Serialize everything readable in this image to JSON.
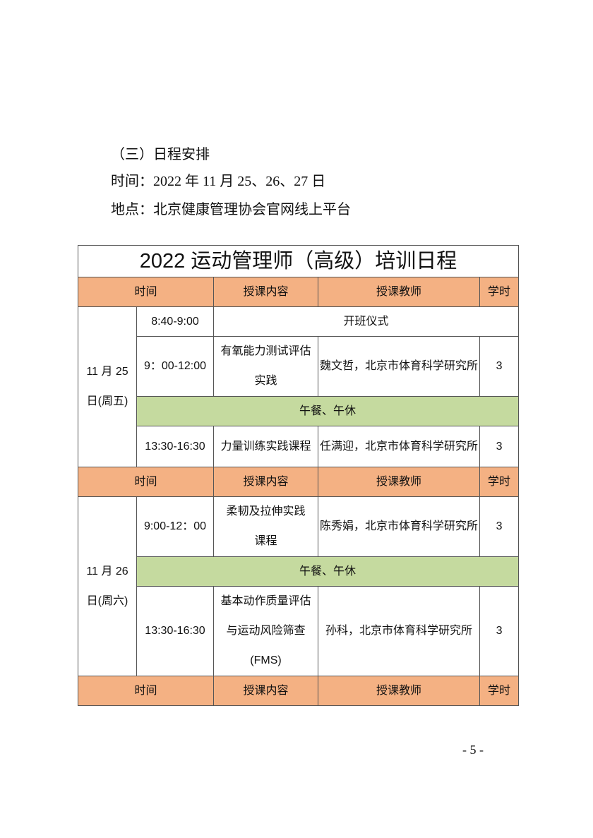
{
  "section_heading": "（三）日程安排",
  "time_line": "时间：2022 年 11 月 25、26、27 日",
  "place_line": "地点：北京健康管理协会官网线上平台",
  "table": {
    "title": "2022 运动管理师（高级）培训日程",
    "headers": [
      "时间",
      "授课内容",
      "授课教师",
      "学时"
    ],
    "colors": {
      "header": "#f4b183",
      "break": "#c5da9f"
    },
    "days": [
      {
        "date": "11 月 25 日(周五)",
        "rows": [
          {
            "time": "8:40-9:00",
            "content": "开班仪式"
          },
          {
            "time": "9：00-12:00",
            "content": "有氧能力测试评估实践",
            "teacher": "魏文哲，北京市体育科学研究所",
            "hours": "3"
          },
          {
            "break": "午餐、午休"
          },
          {
            "time": "13:30-16:30",
            "content": "力量训练实践课程",
            "teacher": "任满迎，北京市体育科学研究所",
            "hours": "3"
          }
        ]
      },
      {
        "date": "11 月 26 日(周六)",
        "rows": [
          {
            "time": "9:00-12：00",
            "content": "柔韧及拉伸实践课程",
            "teacher": "陈秀娟，北京市体育科学研究所",
            "hours": "3"
          },
          {
            "break": "午餐、午休"
          },
          {
            "time": "13:30-16:30",
            "content": "基本动作质量评估与运动风险筛查(FMS)",
            "teacher": "孙科，北京市体育科学研究所",
            "hours": "3"
          }
        ]
      }
    ]
  },
  "page_number": "- 5 -"
}
